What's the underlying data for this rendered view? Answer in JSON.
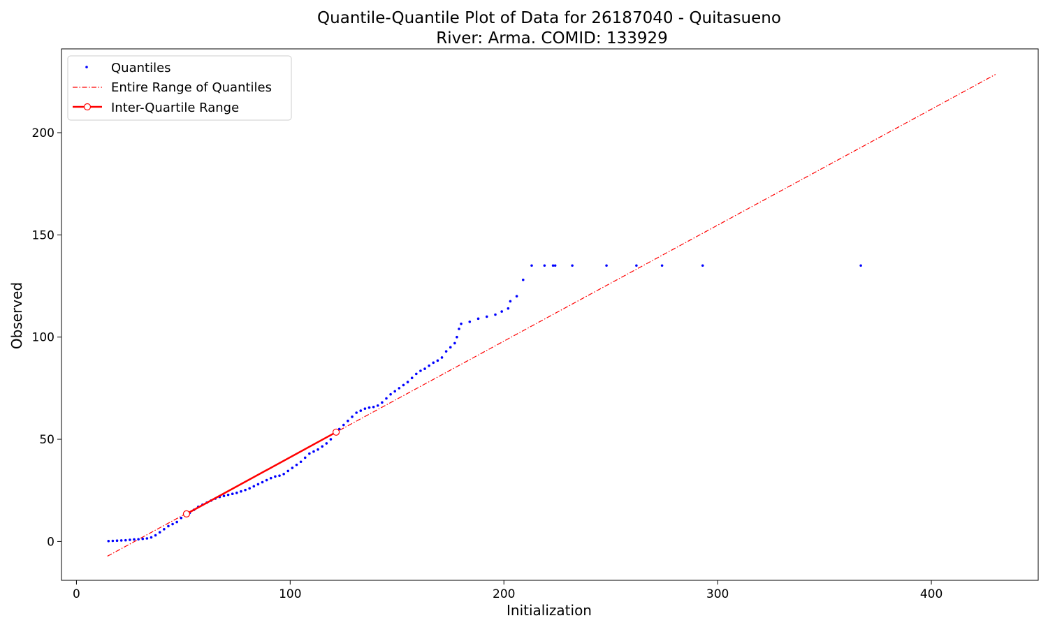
{
  "chart_data": {
    "type": "scatter",
    "title": "Quantile-Quantile Plot of Data for 26187040 - Quitasueno",
    "subtitle": "River: Arma. COMID: 133929",
    "xlabel": "Initialization",
    "ylabel": "Observed",
    "xlim": [
      -7,
      450
    ],
    "ylim": [
      -19,
      241
    ],
    "xticks": [
      0,
      100,
      200,
      300,
      400
    ],
    "yticks": [
      0,
      50,
      100,
      150,
      200
    ],
    "grid": false,
    "legend_position": "upper-left",
    "legend": [
      {
        "label": "Quantiles",
        "style": "marker",
        "color": "#0000ff"
      },
      {
        "label": "Entire Range of Quantiles",
        "style": "dashdot",
        "color": "#ff0000"
      },
      {
        "label": "Inter-Quartile Range",
        "style": "line-marker",
        "color": "#ff0000"
      }
    ],
    "series": [
      {
        "name": "Quantiles",
        "kind": "points",
        "color": "#0000ff",
        "points": [
          [
            15,
            0.2
          ],
          [
            17,
            0.3
          ],
          [
            19,
            0.4
          ],
          [
            21,
            0.5
          ],
          [
            23,
            0.6
          ],
          [
            25,
            0.8
          ],
          [
            27,
            1.0
          ],
          [
            29,
            1.1
          ],
          [
            31,
            1.3
          ],
          [
            33,
            1.5
          ],
          [
            35,
            2.0
          ],
          [
            37,
            3.0
          ],
          [
            39,
            4.5
          ],
          [
            41,
            6.0
          ],
          [
            43,
            7.5
          ],
          [
            45,
            8.5
          ],
          [
            47,
            9.5
          ],
          [
            49,
            11.5
          ],
          [
            51,
            13.0
          ],
          [
            53,
            14.0
          ],
          [
            55,
            15.5
          ],
          [
            57,
            17.0
          ],
          [
            59,
            18.0
          ],
          [
            61,
            19.0
          ],
          [
            63,
            20.0
          ],
          [
            65,
            21.0
          ],
          [
            67,
            21.8
          ],
          [
            69,
            22.3
          ],
          [
            71,
            22.8
          ],
          [
            73,
            23.3
          ],
          [
            75,
            23.8
          ],
          [
            77,
            24.5
          ],
          [
            79,
            25.2
          ],
          [
            81,
            26.0
          ],
          [
            83,
            27.0
          ],
          [
            85,
            28.0
          ],
          [
            87,
            29.0
          ],
          [
            89,
            30.0
          ],
          [
            91,
            31.0
          ],
          [
            93,
            31.8
          ],
          [
            95,
            32.2
          ],
          [
            97,
            33.0
          ],
          [
            99,
            34.5
          ],
          [
            101,
            36.0
          ],
          [
            103,
            37.5
          ],
          [
            105,
            39.0
          ],
          [
            107,
            41.0
          ],
          [
            109,
            43.0
          ],
          [
            111,
            44.0
          ],
          [
            113,
            45.0
          ],
          [
            115,
            46.5
          ],
          [
            117,
            48.0
          ],
          [
            119,
            50.0
          ],
          [
            121,
            53.0
          ],
          [
            123,
            55.0
          ],
          [
            125,
            57.0
          ],
          [
            127,
            59.0
          ],
          [
            129,
            61.0
          ],
          [
            131,
            63.0
          ],
          [
            133,
            64.0
          ],
          [
            135,
            65.0
          ],
          [
            137,
            65.5
          ],
          [
            139,
            65.8
          ],
          [
            141,
            66.5
          ],
          [
            143,
            68.0
          ],
          [
            145,
            70.0
          ],
          [
            147,
            72.0
          ],
          [
            149,
            73.5
          ],
          [
            151,
            75.0
          ],
          [
            153,
            76.5
          ],
          [
            155,
            78.0
          ],
          [
            157,
            80.0
          ],
          [
            159,
            82.0
          ],
          [
            161,
            83.5
          ],
          [
            163,
            84.5
          ],
          [
            165,
            86.0
          ],
          [
            167,
            87.5
          ],
          [
            169,
            88.5
          ],
          [
            171,
            90.0
          ],
          [
            173,
            93.0
          ],
          [
            175,
            95.0
          ],
          [
            177,
            97.0
          ],
          [
            178,
            100.0
          ],
          [
            179,
            104.0
          ],
          [
            180,
            106.5
          ],
          [
            184,
            107.5
          ],
          [
            188,
            109.0
          ],
          [
            192,
            110.0
          ],
          [
            196,
            111.0
          ],
          [
            199,
            112.5
          ],
          [
            202,
            114.0
          ],
          [
            203,
            117.5
          ],
          [
            206,
            120.0
          ],
          [
            209,
            128.0
          ],
          [
            213,
            135.0
          ],
          [
            219,
            135.0
          ],
          [
            223,
            135.0
          ],
          [
            224,
            135.0
          ],
          [
            232,
            135.0
          ],
          [
            248,
            135.0
          ],
          [
            262,
            135.0
          ],
          [
            274,
            135.0
          ],
          [
            293,
            135.0
          ],
          [
            367,
            135.0
          ]
        ]
      },
      {
        "name": "Entire Range of Quantiles",
        "kind": "dashdot-line",
        "color": "#ff0000",
        "points": [
          [
            14.5,
            -7.2
          ],
          [
            430,
            228.5
          ]
        ]
      },
      {
        "name": "Inter-Quartile Range",
        "kind": "solid-line-markers",
        "color": "#ff0000",
        "points": [
          [
            51.5,
            13.5
          ],
          [
            121.5,
            53.5
          ]
        ]
      }
    ]
  }
}
